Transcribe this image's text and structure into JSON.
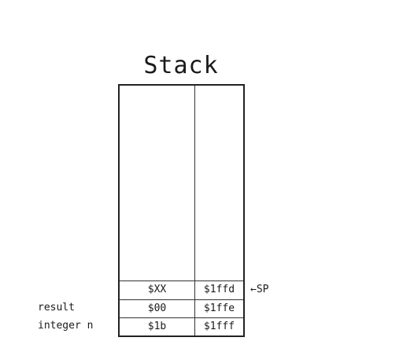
{
  "title": "Stack",
  "rows": [
    {
      "value": "$XX",
      "address": "$1ffd"
    },
    {
      "value": "$00",
      "address": "$1ffe",
      "label": "result"
    },
    {
      "value": "$1b",
      "address": "$1fff",
      "label": "integer n"
    }
  ],
  "pointer": {
    "arrow": "←",
    "label": "SP"
  }
}
